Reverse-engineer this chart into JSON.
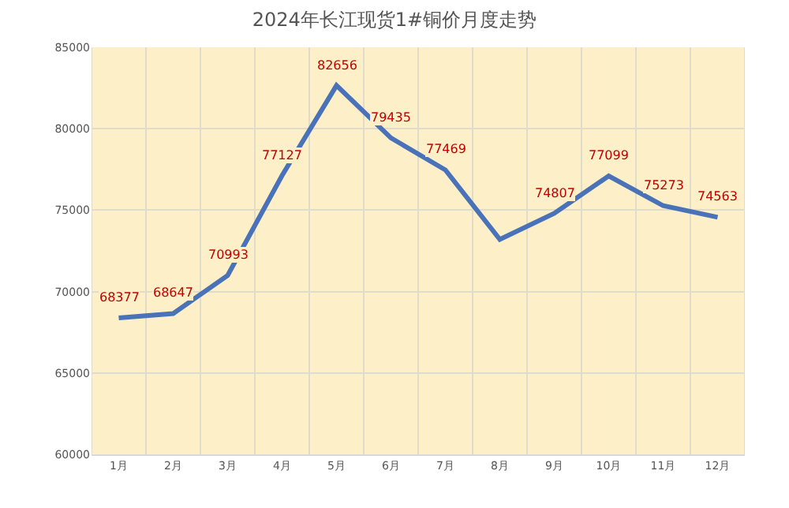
{
  "chart_data": {
    "type": "line",
    "title": "2024年长江现货1#铜价月度走势",
    "categories": [
      "1月",
      "2月",
      "3月",
      "4月",
      "5月",
      "6月",
      "7月",
      "8月",
      "9月",
      "10月",
      "11月",
      "12月"
    ],
    "series": [
      {
        "color": "#4a72b8",
        "values": [
          68377,
          68647,
          70993,
          77127,
          82656,
          79435,
          77469,
          73200,
          74807,
          77099,
          75273,
          74563
        ],
        "value_labels": [
          "68377",
          "68647",
          "70993",
          "77127",
          "82656",
          "79435",
          "77469",
          null,
          "74807",
          "77099",
          "75273",
          "74563"
        ]
      }
    ],
    "ylim": [
      60000,
      85000
    ],
    "yticks": [
      60000,
      65000,
      70000,
      75000,
      80000,
      85000
    ],
    "grid": true,
    "marker": "none"
  }
}
